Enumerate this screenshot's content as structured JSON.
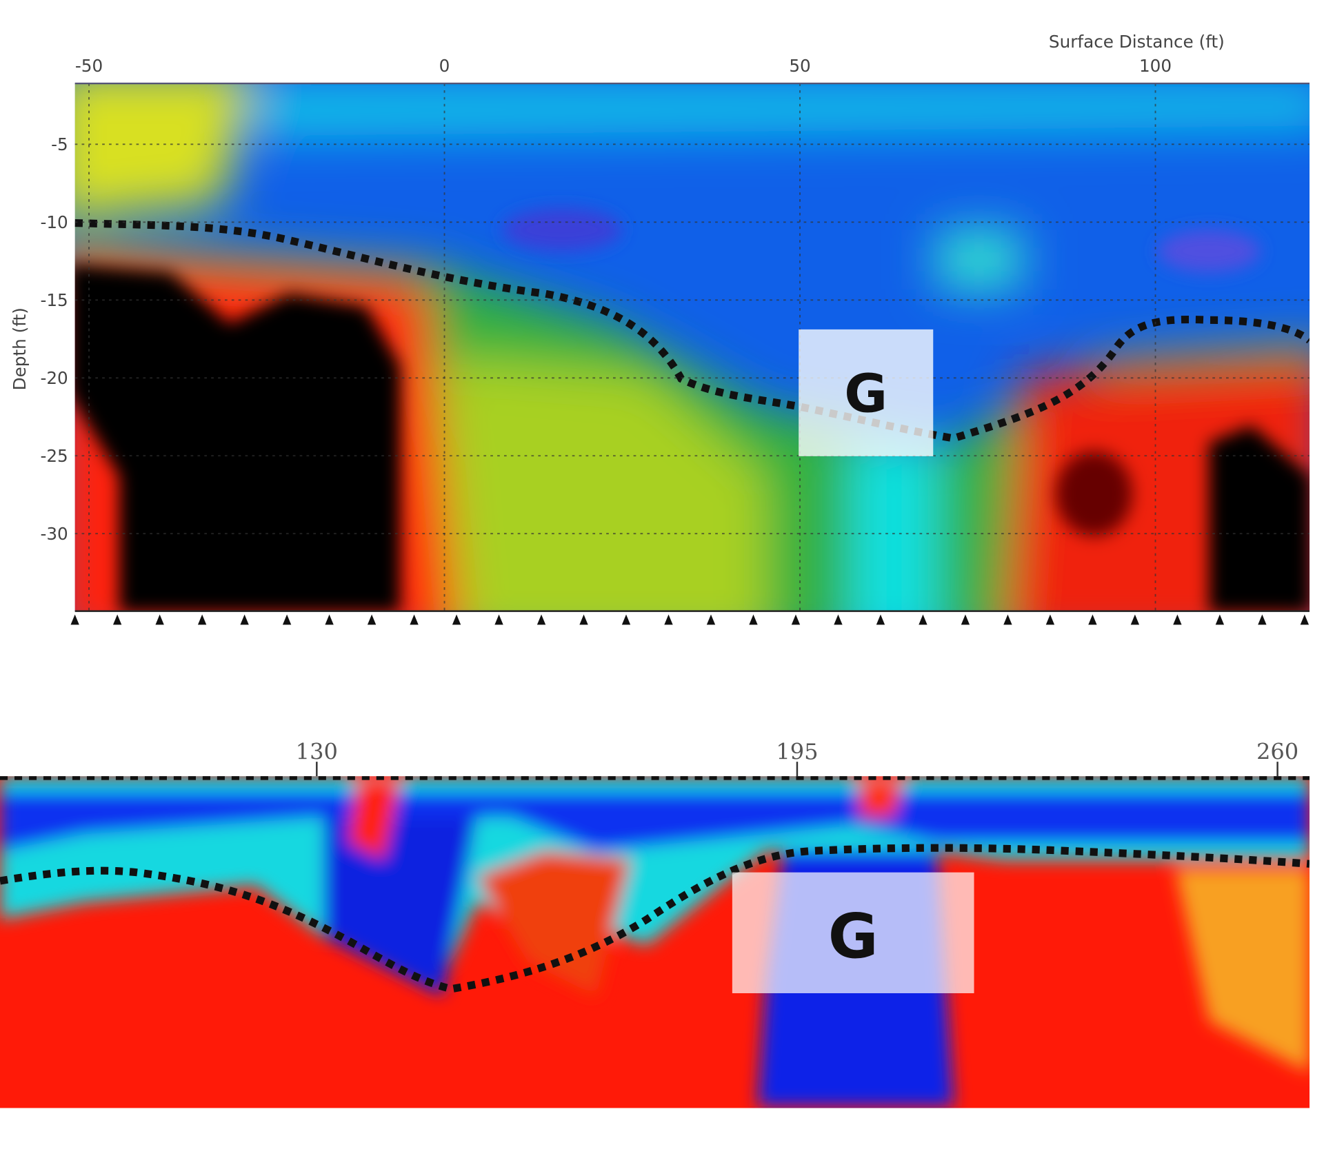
{
  "top_panel": {
    "x_axis_label": "Surface Distance (ft)",
    "x_ticks": [
      -50,
      0,
      50,
      100
    ],
    "y_axis_label": "Depth (ft)",
    "y_ticks": [
      -5,
      -10,
      -15,
      -20,
      -25,
      -30
    ],
    "box_label": "G"
  },
  "bottom_panel": {
    "x_ticks": [
      130,
      195,
      260
    ],
    "box_label": "G"
  }
}
